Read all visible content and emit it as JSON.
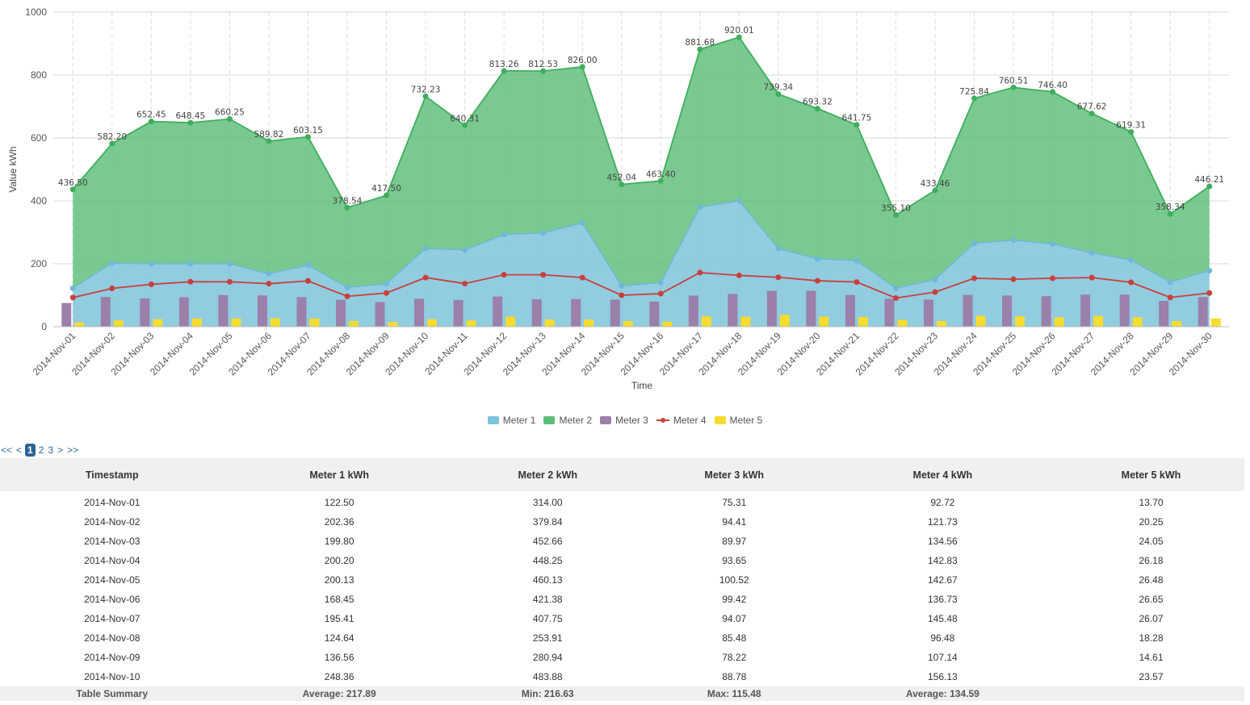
{
  "chart_data": {
    "type": "area",
    "ylabel": "Value kWh",
    "xlabel": "Time",
    "ylim": [
      0,
      1000
    ],
    "y_ticks": [
      0,
      200,
      400,
      600,
      800,
      1000
    ],
    "grid": true,
    "legend_position": "bottom",
    "categories": [
      "2014-Nov-01",
      "2014-Nov-02",
      "2014-Nov-03",
      "2014-Nov-04",
      "2014-Nov-05",
      "2014-Nov-06",
      "2014-Nov-07",
      "2014-Nov-08",
      "2014-Nov-09",
      "2014-Nov-10",
      "2014-Nov-11",
      "2014-Nov-12",
      "2014-Nov-13",
      "2014-Nov-14",
      "2014-Nov-15",
      "2014-Nov-16",
      "2014-Nov-17",
      "2014-Nov-18",
      "2014-Nov-19",
      "2014-Nov-20",
      "2014-Nov-21",
      "2014-Nov-22",
      "2014-Nov-23",
      "2014-Nov-24",
      "2014-Nov-25",
      "2014-Nov-26",
      "2014-Nov-27",
      "2014-Nov-28",
      "2014-Nov-29",
      "2014-Nov-30"
    ],
    "stack_total_labels": [
      "436.50",
      "582.20",
      "652.45",
      "648.45",
      "660.25",
      "589.82",
      "603.15",
      "378.54",
      "417.50",
      "732.23",
      "640.31",
      "813.26",
      "812.53",
      "826.00",
      "452.04",
      "463.40",
      "881.68",
      "920.01",
      "739.34",
      "693.32",
      "641.75",
      "355.10",
      "433.46",
      "725.84",
      "760.51",
      "746.40",
      "677.62",
      "619.31",
      "358.34",
      "446.21"
    ],
    "series": [
      {
        "name": "Meter 1",
        "type": "area",
        "color": "#7ec3dc",
        "values": [
          122.5,
          202.36,
          199.8,
          200.2,
          200.13,
          168.45,
          195.41,
          124.64,
          136.56,
          248.36,
          244,
          293,
          298,
          330,
          130,
          140,
          380,
          400,
          248,
          216,
          210,
          122,
          150,
          265,
          275,
          263,
          235,
          212,
          142,
          178
        ]
      },
      {
        "name": "Meter 2",
        "type": "area",
        "color": "#5dbd78",
        "values": [
          314.0,
          379.84,
          452.66,
          448.25,
          460.13,
          421.38,
          407.75,
          253.91,
          280.94,
          483.88,
          396.31,
          520.26,
          514.53,
          496.0,
          322.04,
          323.4,
          501.68,
          520.01,
          491.34,
          477.32,
          431.75,
          233.1,
          283.46,
          460.84,
          485.51,
          483.4,
          442.62,
          407.31,
          216.34,
          268.21
        ]
      },
      {
        "name": "Meter 3",
        "type": "bar",
        "color": "#9a80ab",
        "values": [
          75.31,
          94.41,
          89.97,
          93.65,
          100.52,
          99.42,
          94.07,
          85.48,
          78.22,
          88.78,
          85,
          96,
          87,
          88,
          86,
          80,
          99,
          104,
          114,
          114,
          101,
          89,
          86,
          101,
          99,
          97,
          102,
          102,
          82,
          94
        ]
      },
      {
        "name": "Meter 4",
        "type": "line",
        "color": "#c9403a",
        "values": [
          92.72,
          121.73,
          134.56,
          142.83,
          142.67,
          136.73,
          145.48,
          96.48,
          107.14,
          156.13,
          137,
          165,
          165,
          156,
          100,
          105,
          172,
          163,
          157,
          146,
          142,
          91,
          110,
          154,
          151,
          154,
          156,
          141,
          93,
          107
        ]
      },
      {
        "name": "Meter 5",
        "type": "bar",
        "color": "#f5dc2e",
        "values": [
          13.7,
          20.25,
          24.05,
          26.18,
          26.48,
          26.65,
          26.07,
          18.28,
          14.61,
          23.57,
          20,
          32,
          23,
          23,
          18,
          16,
          33,
          32,
          38,
          32,
          31,
          22,
          18,
          35,
          33,
          30,
          34,
          30,
          18,
          26
        ]
      }
    ]
  },
  "legend": [
    "Meter 1",
    "Meter 2",
    "Meter 3",
    "Meter 4",
    "Meter 5"
  ],
  "pager": {
    "first": "<<",
    "prev": "<",
    "pages": [
      "1",
      "2",
      "3"
    ],
    "current": "1",
    "next": ">",
    "last": ">>"
  },
  "table": {
    "headers": [
      "Timestamp",
      "Meter 1 kWh",
      "Meter 2 kWh",
      "Meter 3 kWh",
      "Meter 4 kWh",
      "Meter 5 kWh"
    ],
    "rows": [
      [
        "2014-Nov-01",
        "122.50",
        "314.00",
        "75.31",
        "92.72",
        "13.70"
      ],
      [
        "2014-Nov-02",
        "202.36",
        "379.84",
        "94.41",
        "121.73",
        "20.25"
      ],
      [
        "2014-Nov-03",
        "199.80",
        "452.66",
        "89.97",
        "134.56",
        "24.05"
      ],
      [
        "2014-Nov-04",
        "200.20",
        "448.25",
        "93.65",
        "142.83",
        "26.18"
      ],
      [
        "2014-Nov-05",
        "200.13",
        "460.13",
        "100.52",
        "142.67",
        "26.48"
      ],
      [
        "2014-Nov-06",
        "168.45",
        "421.38",
        "99.42",
        "136.73",
        "26.65"
      ],
      [
        "2014-Nov-07",
        "195.41",
        "407.75",
        "94.07",
        "145.48",
        "26.07"
      ],
      [
        "2014-Nov-08",
        "124.64",
        "253.91",
        "85.48",
        "96.48",
        "18.28"
      ],
      [
        "2014-Nov-09",
        "136.56",
        "280.94",
        "78.22",
        "107.14",
        "14.61"
      ],
      [
        "2014-Nov-10",
        "248.36",
        "483.88",
        "88.78",
        "156.13",
        "23.57"
      ]
    ],
    "summary": [
      "Table Summary",
      "Average: 217.89",
      "Min: 216.63",
      "Max: 115.48",
      "Average: 134.59",
      ""
    ]
  }
}
